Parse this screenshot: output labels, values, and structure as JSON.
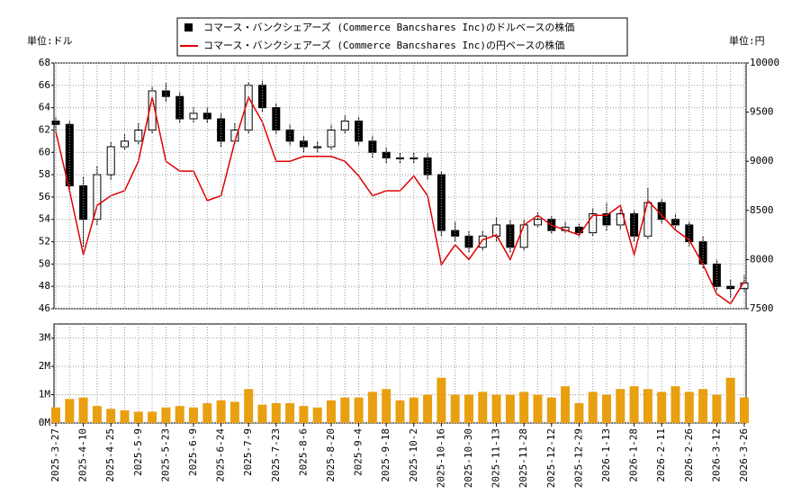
{
  "chart_data": [
    {
      "type": "candlestick",
      "y_unit_label": "単位:ドル",
      "y2_unit_label": "単位:円",
      "ylim": [
        46,
        68
      ],
      "yticks": [
        46,
        48,
        50,
        52,
        54,
        56,
        58,
        60,
        62,
        64,
        66,
        68
      ],
      "y2lim": [
        7500,
        10000
      ],
      "y2ticks": [
        7500,
        8000,
        8500,
        9000,
        9500,
        10000
      ],
      "grid": true,
      "series": [
        {
          "name": "コマース・バンクシェアーズ (Commerce Bancshares Inc)のドルベースの株価",
          "color": "#000000",
          "open": [
            62.8,
            62.5,
            57,
            54,
            58,
            60.5,
            61,
            62,
            65.5,
            65,
            63,
            63.5,
            63,
            61,
            62,
            66,
            64,
            62,
            61,
            60.5,
            60.5,
            62,
            62.8,
            61,
            60,
            59.5,
            59.5,
            59.5,
            58,
            53,
            52.5,
            51.5,
            52.5,
            53.5,
            51.5,
            53.5,
            54,
            53,
            53.3,
            52.8,
            54.5,
            53.5,
            54.5,
            52.5,
            55.5,
            54,
            53.5,
            52,
            50,
            48,
            47.8
          ],
          "high": [
            63.2,
            62.8,
            57.8,
            58.8,
            60.9,
            61.6,
            62.6,
            65.9,
            66.2,
            65.4,
            64,
            64,
            63.5,
            62.6,
            66.3,
            66.4,
            64.4,
            62.5,
            61.5,
            61,
            62.5,
            63.3,
            63.2,
            61.5,
            60.4,
            60,
            60,
            59.9,
            58.3,
            53.8,
            53,
            53,
            54.2,
            53.9,
            54,
            54.6,
            54.3,
            53.8,
            53.6,
            55,
            55.5,
            54.9,
            54.8,
            56.8,
            55.8,
            54.5,
            53.8,
            52.5,
            50.4,
            48.6,
            49
          ],
          "low": [
            61.8,
            56.5,
            51.5,
            53.5,
            57.5,
            60.2,
            60.7,
            61.7,
            64.5,
            62.6,
            62.7,
            62.6,
            60.5,
            60.7,
            61.7,
            63.6,
            61.6,
            60.6,
            60,
            60,
            60.2,
            61.7,
            60.6,
            59.5,
            59,
            59,
            59,
            57.5,
            52.5,
            52,
            51,
            51.2,
            52,
            51,
            51.2,
            53.3,
            52.7,
            52.8,
            52.4,
            52.5,
            53,
            53.1,
            52,
            52.2,
            53.6,
            53.1,
            51.6,
            49.6,
            47.6,
            47,
            47.5
          ],
          "close": [
            62.5,
            57,
            54,
            58,
            60.5,
            61,
            62,
            65.5,
            65,
            63,
            63.5,
            63,
            61,
            62,
            66,
            64,
            62,
            61,
            60.5,
            60.5,
            62,
            62.8,
            61,
            60,
            59.5,
            59.5,
            59.5,
            58,
            53,
            52.5,
            51.5,
            52.5,
            53.5,
            51.5,
            53.5,
            54,
            53,
            53.3,
            52.8,
            54.5,
            53.5,
            54.5,
            52.5,
            55.5,
            54,
            53.5,
            52,
            50,
            48,
            47.8,
            48.3
          ]
        },
        {
          "name": "コマース・バンクシェアーズ (Commerce Bancshares Inc)の円ベースの株価",
          "color": "#e00000",
          "axis": "y2",
          "values": [
            9300,
            8700,
            8050,
            8550,
            8650,
            8700,
            9000,
            9650,
            9000,
            8900,
            8900,
            8600,
            8650,
            9200,
            9650,
            9400,
            9000,
            9000,
            9050,
            9050,
            9050,
            9000,
            8850,
            8650,
            8700,
            8700,
            8850,
            8650,
            7950,
            8150,
            8000,
            8200,
            8250,
            8000,
            8350,
            8450,
            8350,
            8300,
            8250,
            8450,
            8450,
            8550,
            8050,
            8600,
            8450,
            8300,
            8200,
            7950,
            7650,
            7550,
            7780
          ]
        }
      ]
    },
    {
      "type": "bar",
      "color": "#e8a010",
      "categories": [
        "2025-3-27",
        null,
        "2025-4-10",
        null,
        "2025-4-25",
        null,
        "2025-5-9",
        null,
        "2025-5-23",
        null,
        "2025-6-9",
        null,
        "2025-6-24",
        null,
        "2025-7-9",
        null,
        "2025-7-23",
        null,
        "2025-8-6",
        null,
        "2025-8-20",
        null,
        "2025-9-4",
        null,
        "2025-9-18",
        null,
        "2025-10-2",
        null,
        "2025-10-16",
        null,
        "2025-10-30",
        null,
        "2025-11-13",
        null,
        "2025-11-28",
        null,
        "2025-12-12",
        null,
        "2025-12-29",
        null,
        "2026-1-13",
        null,
        "2026-1-28",
        null,
        "2026-2-11",
        null,
        "2026-2-26",
        null,
        "2026-3-12",
        null,
        "2026-3-26"
      ],
      "values": [
        550000,
        850000,
        900000,
        600000,
        500000,
        450000,
        400000,
        400000,
        550000,
        600000,
        550000,
        700000,
        800000,
        750000,
        1200000,
        650000,
        700000,
        700000,
        600000,
        550000,
        800000,
        900000,
        900000,
        1100000,
        1200000,
        800000,
        900000,
        1000000,
        1600000,
        1000000,
        1000000,
        1100000,
        1000000,
        1000000,
        1100000,
        1000000,
        900000,
        1300000,
        700000,
        1100000,
        1000000,
        1200000,
        1300000,
        1200000,
        1100000,
        1300000,
        1100000,
        1200000,
        1000000,
        1600000,
        900000
      ],
      "ylim": [
        0,
        3500000
      ],
      "yticks": [
        {
          "value": 0,
          "label": "0M"
        },
        {
          "value": 1000000,
          "label": "1M"
        },
        {
          "value": 2000000,
          "label": "2M"
        },
        {
          "value": 3000000,
          "label": "3M"
        }
      ],
      "grid": true
    }
  ]
}
